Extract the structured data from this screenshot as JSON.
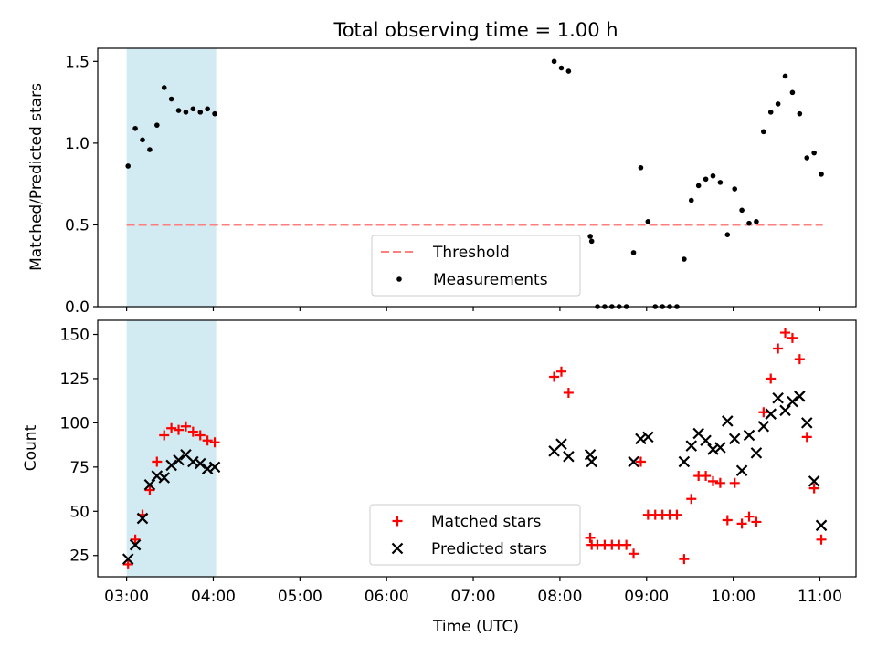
{
  "chart_data": [
    {
      "type": "scatter",
      "title": "Total observing time = 1.00 h",
      "xlabel": "",
      "ylabel": "Matched/Predicted stars",
      "x_unit": "time (UTC)",
      "xlim": [
        "02:40",
        "11:25"
      ],
      "ylim": [
        0,
        1.58
      ],
      "yticks": [
        "0.0",
        "0.5",
        "1.0",
        "1.5"
      ],
      "shaded_span": {
        "from": "03:00",
        "to": "04:02",
        "color": "#add8e6"
      },
      "threshold": {
        "name": "Threshold",
        "value": 0.5,
        "from": "03:00",
        "to": "11:02",
        "color": "#ff7f7f",
        "style": "dashed"
      },
      "legend": {
        "position": "lower center",
        "entries": [
          "Threshold",
          "Measurements"
        ]
      },
      "series": [
        {
          "name": "Measurements",
          "marker": "dot",
          "color": "#000000",
          "points": [
            [
              "03:01",
              0.86
            ],
            [
              "03:06",
              1.09
            ],
            [
              "03:11",
              1.02
            ],
            [
              "03:16",
              0.96
            ],
            [
              "03:21",
              1.11
            ],
            [
              "03:26",
              1.34
            ],
            [
              "03:31",
              1.27
            ],
            [
              "03:36",
              1.2
            ],
            [
              "03:41",
              1.19
            ],
            [
              "03:46",
              1.21
            ],
            [
              "03:51",
              1.19
            ],
            [
              "03:56",
              1.21
            ],
            [
              "04:01",
              1.18
            ],
            [
              "07:56",
              1.5
            ],
            [
              "08:01",
              1.46
            ],
            [
              "08:06",
              1.44
            ],
            [
              "08:21",
              0.43
            ],
            [
              "08:22",
              0.4
            ],
            [
              "08:26",
              0.0
            ],
            [
              "08:31",
              0.0
            ],
            [
              "08:36",
              0.0
            ],
            [
              "08:41",
              0.0
            ],
            [
              "08:46",
              0.0
            ],
            [
              "08:51",
              0.33
            ],
            [
              "08:56",
              0.85
            ],
            [
              "09:01",
              0.52
            ],
            [
              "09:06",
              0.0
            ],
            [
              "09:11",
              0.0
            ],
            [
              "09:16",
              0.0
            ],
            [
              "09:21",
              0.0
            ],
            [
              "09:26",
              0.29
            ],
            [
              "09:31",
              0.65
            ],
            [
              "09:36",
              0.74
            ],
            [
              "09:41",
              0.78
            ],
            [
              "09:46",
              0.8
            ],
            [
              "09:51",
              0.76
            ],
            [
              "09:56",
              0.44
            ],
            [
              "10:01",
              0.72
            ],
            [
              "10:06",
              0.59
            ],
            [
              "10:11",
              0.51
            ],
            [
              "10:16",
              0.52
            ],
            [
              "10:21",
              1.07
            ],
            [
              "10:26",
              1.19
            ],
            [
              "10:31",
              1.24
            ],
            [
              "10:36",
              1.41
            ],
            [
              "10:41",
              1.31
            ],
            [
              "10:46",
              1.18
            ],
            [
              "10:51",
              0.91
            ],
            [
              "10:56",
              0.94
            ],
            [
              "11:01",
              0.81
            ]
          ]
        }
      ]
    },
    {
      "type": "scatter",
      "title": "",
      "xlabel": "Time (UTC)",
      "ylabel": "Count",
      "xlim": [
        "02:40",
        "11:25"
      ],
      "ylim": [
        13,
        158
      ],
      "yticks": [
        "25",
        "50",
        "75",
        "100",
        "125",
        "150"
      ],
      "xticks": [
        "03:00",
        "04:00",
        "05:00",
        "06:00",
        "07:00",
        "08:00",
        "09:00",
        "10:00",
        "11:00"
      ],
      "shaded_span": {
        "from": "03:00",
        "to": "04:02",
        "color": "#add8e6"
      },
      "legend": {
        "position": "lower center",
        "entries": [
          "Matched stars",
          "Predicted stars"
        ]
      },
      "series": [
        {
          "name": "Matched stars",
          "marker": "plus",
          "color": "#ff0000",
          "points": [
            [
              "03:01",
              20
            ],
            [
              "03:06",
              34
            ],
            [
              "03:11",
              48
            ],
            [
              "03:16",
              62
            ],
            [
              "03:21",
              78
            ],
            [
              "03:26",
              93
            ],
            [
              "03:31",
              97
            ],
            [
              "03:36",
              96
            ],
            [
              "03:41",
              98
            ],
            [
              "03:46",
              95
            ],
            [
              "03:51",
              93
            ],
            [
              "03:56",
              90
            ],
            [
              "04:01",
              89
            ],
            [
              "07:56",
              126
            ],
            [
              "08:01",
              129
            ],
            [
              "08:06",
              117
            ],
            [
              "08:21",
              35
            ],
            [
              "08:22",
              31
            ],
            [
              "08:26",
              31
            ],
            [
              "08:31",
              31
            ],
            [
              "08:36",
              31
            ],
            [
              "08:41",
              31
            ],
            [
              "08:46",
              31
            ],
            [
              "08:51",
              26
            ],
            [
              "08:56",
              78
            ],
            [
              "09:01",
              48
            ],
            [
              "09:06",
              48
            ],
            [
              "09:11",
              48
            ],
            [
              "09:16",
              48
            ],
            [
              "09:21",
              48
            ],
            [
              "09:26",
              23
            ],
            [
              "09:31",
              57
            ],
            [
              "09:36",
              70
            ],
            [
              "09:41",
              70
            ],
            [
              "09:46",
              67
            ],
            [
              "09:51",
              66
            ],
            [
              "09:56",
              45
            ],
            [
              "10:01",
              66
            ],
            [
              "10:06",
              43
            ],
            [
              "10:11",
              47
            ],
            [
              "10:16",
              44
            ],
            [
              "10:21",
              106
            ],
            [
              "10:26",
              125
            ],
            [
              "10:31",
              142
            ],
            [
              "10:36",
              151
            ],
            [
              "10:41",
              148
            ],
            [
              "10:46",
              136
            ],
            [
              "10:51",
              92
            ],
            [
              "10:56",
              63
            ],
            [
              "11:01",
              34
            ]
          ]
        },
        {
          "name": "Predicted stars",
          "marker": "x",
          "color": "#000000",
          "points": [
            [
              "03:01",
              23
            ],
            [
              "03:06",
              31
            ],
            [
              "03:11",
              46
            ],
            [
              "03:16",
              65
            ],
            [
              "03:21",
              70
            ],
            [
              "03:26",
              69
            ],
            [
              "03:31",
              76
            ],
            [
              "03:36",
              79
            ],
            [
              "03:41",
              82
            ],
            [
              "03:46",
              78
            ],
            [
              "03:51",
              77
            ],
            [
              "03:56",
              74
            ],
            [
              "04:01",
              75
            ],
            [
              "07:56",
              84
            ],
            [
              "08:01",
              88
            ],
            [
              "08:06",
              81
            ],
            [
              "08:21",
              82
            ],
            [
              "08:22",
              78
            ],
            [
              "08:51",
              78
            ],
            [
              "08:56",
              91
            ],
            [
              "09:01",
              92
            ],
            [
              "09:26",
              78
            ],
            [
              "09:31",
              87
            ],
            [
              "09:36",
              94
            ],
            [
              "09:41",
              90
            ],
            [
              "09:46",
              85
            ],
            [
              "09:51",
              86
            ],
            [
              "09:56",
              101
            ],
            [
              "10:01",
              91
            ],
            [
              "10:06",
              73
            ],
            [
              "10:11",
              93
            ],
            [
              "10:16",
              83
            ],
            [
              "10:21",
              98
            ],
            [
              "10:26",
              105
            ],
            [
              "10:31",
              114
            ],
            [
              "10:36",
              107
            ],
            [
              "10:41",
              112
            ],
            [
              "10:46",
              115
            ],
            [
              "10:51",
              100
            ],
            [
              "10:56",
              67
            ],
            [
              "11:01",
              42
            ]
          ]
        }
      ]
    }
  ]
}
